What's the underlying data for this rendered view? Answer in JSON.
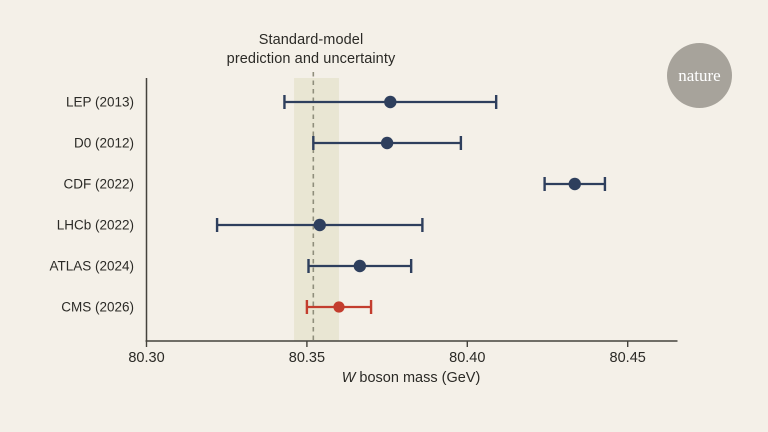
{
  "page": {
    "background": "#f4f0e8",
    "text_color": "#2b2a26"
  },
  "logo": {
    "text": "nature",
    "circle_color": "#a7a39b",
    "text_color": "#ffffff"
  },
  "chart_data": {
    "type": "scatter",
    "subtype": "horizontal-error-bar-dot-plot",
    "title": "",
    "xlabel": "W boson mass (GeV)",
    "xlabel_italic_prefix": "W",
    "xlabel_rest": " boson mass (GeV)",
    "ylabel": "",
    "grid": false,
    "legend": false,
    "xlim": [
      80.3,
      80.4655
    ],
    "xticks": [
      80.3,
      80.35,
      80.4,
      80.45
    ],
    "xtick_labels": [
      "80.30",
      "80.35",
      "80.40",
      "80.45"
    ],
    "categories": [
      "LEP (2013)",
      "D0 (2012)",
      "CDF (2022)",
      "LHCb (2022)",
      "ATLAS (2024)",
      "CMS (2026)"
    ],
    "values": [
      80.376,
      80.375,
      80.4335,
      80.354,
      80.3665,
      80.36
    ],
    "errors": [
      0.033,
      0.023,
      0.0094,
      0.032,
      0.016,
      0.01
    ],
    "point_colors": [
      "navy",
      "navy",
      "navy",
      "navy",
      "navy",
      "red"
    ],
    "sm_prediction": {
      "label_lines": [
        "Standard-model",
        "prediction and uncertainty"
      ],
      "value": 80.352,
      "band": [
        80.346,
        80.36
      ]
    },
    "colors": {
      "navy": "#2e3f5d",
      "red": "#c33d2e",
      "band": "#e9e6d3",
      "dashed": "#8f8e7c",
      "axis": "#44423c",
      "text": "#2b2a26"
    }
  }
}
